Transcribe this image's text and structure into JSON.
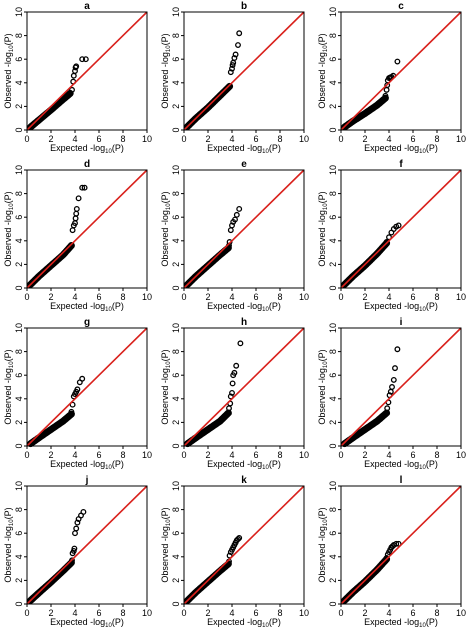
{
  "figure": {
    "axis_labels": {
      "x_prefix": "Expected -log",
      "x_sub": "10",
      "x_suffix": "(P)",
      "y_prefix": "Observed -log",
      "y_sub": "10",
      "y_suffix": "(P)"
    },
    "colors": {
      "reference_line": "#d9211c",
      "points": "#000000",
      "box": "#000000"
    },
    "ticks": [
      "0",
      "2",
      "4",
      "6",
      "8",
      "10"
    ]
  },
  "chart_data": [
    {
      "type": "scatter",
      "panel": "a",
      "xlim": [
        0,
        10
      ],
      "ylim": [
        0,
        10
      ],
      "reference_line": "y = x",
      "series": [
        {
          "x": [
            0.3,
            1.0,
            2.0,
            2.9,
            3.6
          ],
          "y": [
            0.25,
            0.85,
            1.7,
            2.5,
            3.1
          ],
          "style": "dense-band"
        },
        {
          "x": [
            3.6,
            3.75,
            3.85,
            3.9,
            4.0,
            4.05,
            4.1,
            4.6,
            4.9
          ],
          "y": [
            3.1,
            3.4,
            4.1,
            4.6,
            5.0,
            5.3,
            5.4,
            6.0,
            6.0
          ],
          "style": "points"
        }
      ]
    },
    {
      "type": "scatter",
      "panel": "b",
      "xlim": [
        0,
        10
      ],
      "ylim": [
        0,
        10
      ],
      "reference_line": "y = x",
      "series": [
        {
          "x": [
            0.3,
            1.0,
            2.0,
            3.0,
            3.8
          ],
          "y": [
            0.3,
            1.0,
            1.9,
            2.9,
            3.7
          ],
          "style": "dense-band"
        },
        {
          "x": [
            3.9,
            4.0,
            4.05,
            4.1,
            4.2,
            4.3,
            4.5,
            4.6
          ],
          "y": [
            4.9,
            5.2,
            5.5,
            5.7,
            6.1,
            6.4,
            7.2,
            8.2
          ],
          "style": "points"
        }
      ]
    },
    {
      "type": "scatter",
      "panel": "c",
      "xlim": [
        0,
        10
      ],
      "ylim": [
        0,
        10
      ],
      "reference_line": "y = x",
      "series": [
        {
          "x": [
            0.3,
            1.0,
            2.0,
            3.0,
            3.7
          ],
          "y": [
            0.25,
            0.75,
            1.4,
            2.1,
            2.7
          ],
          "style": "dense-band"
        },
        {
          "x": [
            3.7,
            3.8,
            3.85,
            3.9,
            4.0,
            4.1,
            4.2,
            4.35,
            4.7
          ],
          "y": [
            2.9,
            3.4,
            3.8,
            4.2,
            4.4,
            4.45,
            4.5,
            4.6,
            5.8
          ],
          "style": "points"
        }
      ]
    },
    {
      "type": "scatter",
      "panel": "d",
      "xlim": [
        0,
        10
      ],
      "ylim": [
        0,
        10
      ],
      "reference_line": "y = x",
      "series": [
        {
          "x": [
            0.3,
            1.0,
            2.0,
            3.0,
            3.7
          ],
          "y": [
            0.3,
            1.0,
            1.9,
            2.8,
            3.6
          ],
          "style": "dense-band"
        },
        {
          "x": [
            3.8,
            3.9,
            4.0,
            4.05,
            4.1,
            4.15,
            4.3,
            4.6,
            4.8
          ],
          "y": [
            4.9,
            5.3,
            5.5,
            5.9,
            6.3,
            6.7,
            7.6,
            8.5,
            8.5
          ],
          "style": "points"
        }
      ]
    },
    {
      "type": "scatter",
      "panel": "e",
      "xlim": [
        0,
        10
      ],
      "ylim": [
        0,
        10
      ],
      "reference_line": "y = x",
      "series": [
        {
          "x": [
            0.3,
            1.0,
            2.0,
            3.0,
            3.7
          ],
          "y": [
            0.3,
            1.0,
            1.9,
            2.8,
            3.4
          ],
          "style": "dense-band"
        },
        {
          "x": [
            3.75,
            3.8,
            3.9,
            4.0,
            4.1,
            4.25,
            4.4,
            4.6
          ],
          "y": [
            3.6,
            3.9,
            4.9,
            5.3,
            5.6,
            5.8,
            6.2,
            6.7
          ],
          "style": "points"
        }
      ]
    },
    {
      "type": "scatter",
      "panel": "f",
      "xlim": [
        0,
        10
      ],
      "ylim": [
        0,
        10
      ],
      "reference_line": "y = x",
      "series": [
        {
          "x": [
            0.3,
            1.0,
            2.0,
            3.0,
            3.8
          ],
          "y": [
            0.3,
            1.0,
            1.9,
            2.9,
            3.8
          ],
          "style": "dense-band"
        },
        {
          "x": [
            3.8,
            4.0,
            4.2,
            4.4,
            4.6,
            4.8
          ],
          "y": [
            3.9,
            4.3,
            4.7,
            5.0,
            5.2,
            5.3
          ],
          "style": "points"
        }
      ]
    },
    {
      "type": "scatter",
      "panel": "g",
      "xlim": [
        0,
        10
      ],
      "ylim": [
        0,
        10
      ],
      "reference_line": "y = x",
      "series": [
        {
          "x": [
            0.3,
            1.0,
            2.0,
            3.0,
            3.7
          ],
          "y": [
            0.2,
            0.7,
            1.4,
            2.1,
            2.7
          ],
          "style": "dense-band"
        },
        {
          "x": [
            3.7,
            3.8,
            3.9,
            4.0,
            4.1,
            4.2,
            4.4,
            4.6
          ],
          "y": [
            2.9,
            3.5,
            4.2,
            4.4,
            4.6,
            4.8,
            5.4,
            5.7
          ],
          "style": "points"
        }
      ]
    },
    {
      "type": "scatter",
      "panel": "h",
      "xlim": [
        0,
        10
      ],
      "ylim": [
        0,
        10
      ],
      "reference_line": "y = x",
      "series": [
        {
          "x": [
            0.3,
            1.0,
            2.0,
            3.0,
            3.7
          ],
          "y": [
            0.2,
            0.7,
            1.4,
            2.1,
            2.8
          ],
          "style": "dense-band"
        },
        {
          "x": [
            3.75,
            3.85,
            3.9,
            4.0,
            4.05,
            4.1,
            4.2,
            4.35,
            4.7
          ],
          "y": [
            3.2,
            3.6,
            4.2,
            4.5,
            5.3,
            6.0,
            6.2,
            6.8,
            8.7
          ],
          "style": "points"
        }
      ]
    },
    {
      "type": "scatter",
      "panel": "i",
      "xlim": [
        0,
        10
      ],
      "ylim": [
        0,
        10
      ],
      "reference_line": "y = x",
      "series": [
        {
          "x": [
            0.3,
            1.0,
            2.0,
            3.0,
            3.8
          ],
          "y": [
            0.2,
            0.7,
            1.4,
            2.1,
            2.8
          ],
          "style": "dense-band"
        },
        {
          "x": [
            3.85,
            3.95,
            4.05,
            4.15,
            4.25,
            4.4,
            4.5,
            4.7
          ],
          "y": [
            3.2,
            3.7,
            4.3,
            4.6,
            5.0,
            5.6,
            6.6,
            8.2
          ],
          "style": "points"
        }
      ]
    },
    {
      "type": "scatter",
      "panel": "j",
      "xlim": [
        0,
        10
      ],
      "ylim": [
        0,
        10
      ],
      "reference_line": "y = x",
      "series": [
        {
          "x": [
            0.3,
            1.0,
            2.0,
            3.0,
            3.7
          ],
          "y": [
            0.3,
            0.95,
            1.85,
            2.8,
            3.5
          ],
          "style": "dense-band"
        },
        {
          "x": [
            3.75,
            3.8,
            3.9,
            3.95,
            4.0,
            4.1,
            4.2,
            4.3,
            4.5,
            4.7
          ],
          "y": [
            3.7,
            4.3,
            4.5,
            4.7,
            6.0,
            6.4,
            6.9,
            7.2,
            7.5,
            7.8
          ],
          "style": "points"
        }
      ]
    },
    {
      "type": "scatter",
      "panel": "k",
      "xlim": [
        0,
        10
      ],
      "ylim": [
        0,
        10
      ],
      "reference_line": "y = x",
      "series": [
        {
          "x": [
            0.3,
            1.0,
            2.0,
            3.0,
            3.7
          ],
          "y": [
            0.3,
            1.0,
            1.9,
            2.8,
            3.4
          ],
          "style": "dense-band"
        },
        {
          "x": [
            3.75,
            3.8,
            3.9,
            4.0,
            4.1,
            4.2,
            4.3,
            4.4,
            4.5,
            4.6
          ],
          "y": [
            3.6,
            4.1,
            4.4,
            4.6,
            4.8,
            5.0,
            5.2,
            5.4,
            5.5,
            5.6
          ],
          "style": "points"
        }
      ]
    },
    {
      "type": "scatter",
      "panel": "l",
      "xlim": [
        0,
        10
      ],
      "ylim": [
        0,
        10
      ],
      "reference_line": "y = x",
      "series": [
        {
          "x": [
            0.3,
            1.0,
            2.0,
            3.0,
            3.8
          ],
          "y": [
            0.3,
            1.0,
            1.9,
            2.9,
            3.8
          ],
          "style": "dense-band"
        },
        {
          "x": [
            3.8,
            3.9,
            4.0,
            4.1,
            4.2,
            4.3,
            4.4,
            4.6,
            4.8
          ],
          "y": [
            3.9,
            4.2,
            4.4,
            4.6,
            4.8,
            4.9,
            5.0,
            5.1,
            5.1
          ],
          "style": "points"
        }
      ]
    }
  ]
}
